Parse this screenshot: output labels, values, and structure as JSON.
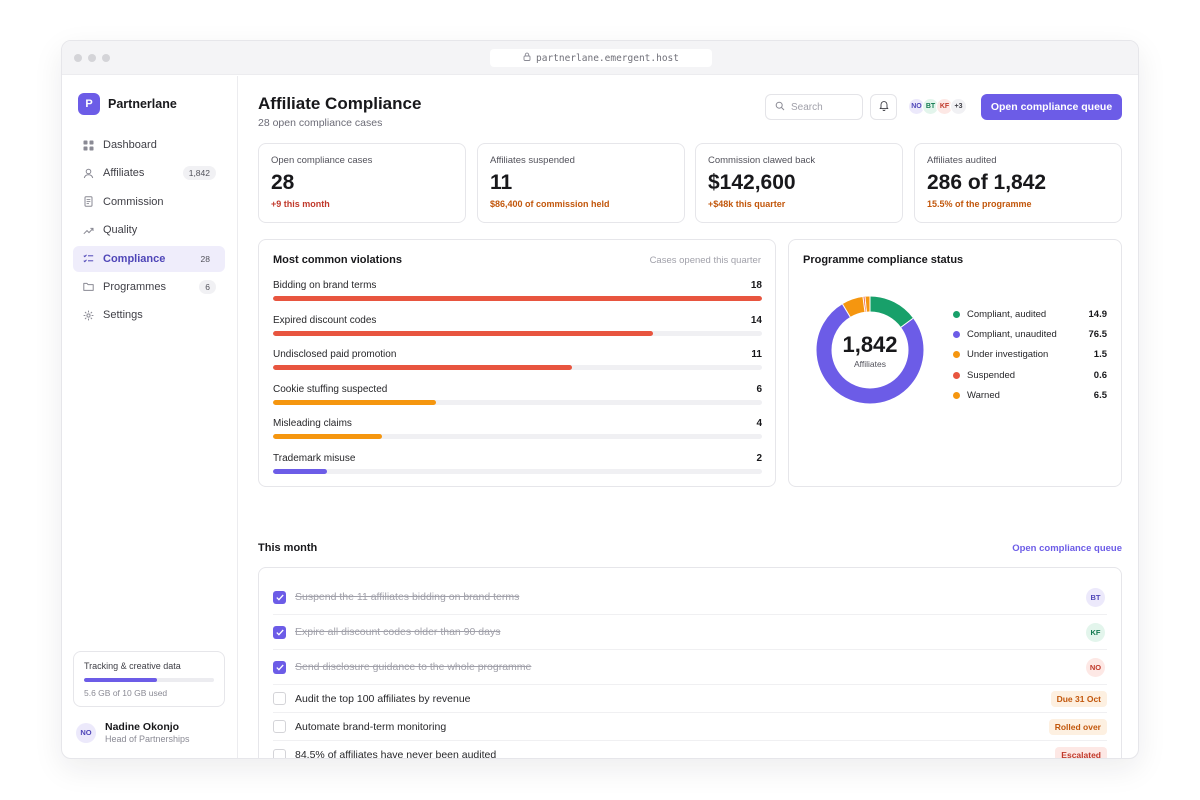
{
  "browser": {
    "url": "partnerlane.emergent.host"
  },
  "app": {
    "logo_letter": "P",
    "name": "Partnerlane"
  },
  "sidebar": {
    "items": [
      {
        "label": "Dashboard",
        "icon": "grid-icon",
        "badge": ""
      },
      {
        "label": "Affiliates",
        "icon": "user-icon",
        "badge": "1,842"
      },
      {
        "label": "Commission",
        "icon": "document-icon",
        "badge": ""
      },
      {
        "label": "Quality",
        "icon": "trend-icon",
        "badge": ""
      },
      {
        "label": "Compliance",
        "icon": "checklist-icon",
        "badge": "28"
      },
      {
        "label": "Programmes",
        "icon": "folder-icon",
        "badge": "6"
      },
      {
        "label": "Settings",
        "icon": "gear-icon",
        "badge": ""
      }
    ],
    "storage": {
      "title": "Tracking & creative data",
      "used_text": "5.6 GB of 10 GB used",
      "used_fraction": 0.56
    },
    "user": {
      "initials": "NO",
      "name": "Nadine Okonjo",
      "role": "Head of Partnerships"
    }
  },
  "header": {
    "title": "Affiliate Compliance",
    "subtitle": "28 open compliance cases",
    "search_placeholder": "Search",
    "avatars": [
      "NO",
      "BT",
      "KF"
    ],
    "avatars_more": "+3",
    "primary_button": "Open compliance queue"
  },
  "stats": [
    {
      "label": "Open compliance cases",
      "value": "28",
      "delta": "+9 this month",
      "color": "#c0392b"
    },
    {
      "label": "Affiliates suspended",
      "value": "11",
      "delta": "$86,400 of commission held",
      "color": "#c2570c"
    },
    {
      "label": "Commission clawed back",
      "value": "$142,600",
      "delta": "+$48k this quarter",
      "color": "#c2570c"
    },
    {
      "label": "Affiliates audited",
      "value": "286 of 1,842",
      "delta": "15.5% of the programme",
      "color": "#c2570c"
    }
  ],
  "violations": {
    "title": "Most common violations",
    "meta": "Cases opened this quarter",
    "max": 18,
    "rows": [
      {
        "label": "Bidding on brand terms",
        "count": 18,
        "color": "#e8553f"
      },
      {
        "label": "Expired discount codes",
        "count": 14,
        "color": "#e8553f"
      },
      {
        "label": "Undisclosed paid promotion",
        "count": 11,
        "color": "#e8553f"
      },
      {
        "label": "Cookie stuffing suspected",
        "count": 6,
        "color": "#f5960f"
      },
      {
        "label": "Misleading claims",
        "count": 4,
        "color": "#f5960f"
      },
      {
        "label": "Trademark misuse",
        "count": 2,
        "color": "#6c5ce7"
      }
    ]
  },
  "status": {
    "title": "Programme compliance status",
    "total": "1,842",
    "total_label": "Affiliates",
    "segments": [
      {
        "label": "Compliant, audited",
        "value": 14.9,
        "display": "14.9",
        "color": "#18a06a"
      },
      {
        "label": "Compliant, unaudited",
        "value": 76.5,
        "display": "76.5",
        "color": "#6c5ce7"
      },
      {
        "label": "Under investigation",
        "value": 1.5,
        "display": "1.5",
        "color": "#f5960f"
      },
      {
        "label": "Suspended",
        "value": 0.6,
        "display": "0.6",
        "color": "#e8553f"
      },
      {
        "label": "Warned",
        "value": 6.5,
        "display": "6.5",
        "color": "#f5960f"
      }
    ]
  },
  "tasks": {
    "title": "This month",
    "link": "Open compliance queue",
    "items": [
      {
        "text": "Suspend the 11 affiliates bidding on brand terms",
        "done": true,
        "avatar": "BT",
        "avatar_bg": "#ece9fb",
        "avatar_color": "#4f46b8"
      },
      {
        "text": "Expire all discount codes older than 90 days",
        "done": true,
        "avatar": "KF",
        "avatar_bg": "#e3f5ec",
        "avatar_color": "#137a50"
      },
      {
        "text": "Send disclosure guidance to the whole programme",
        "done": true,
        "avatar": "NO",
        "avatar_bg": "#fde8e5",
        "avatar_color": "#c0392b"
      },
      {
        "text": "Audit the top 100 affiliates by revenue",
        "done": false,
        "tag": "Due 31 Oct",
        "tag_bg": "#fdf0e1",
        "tag_color": "#c2570c"
      },
      {
        "text": "Automate brand-term monitoring",
        "done": false,
        "tag": "Rolled over",
        "tag_bg": "#fdf0e1",
        "tag_color": "#c2570c"
      },
      {
        "text": "84.5% of affiliates have never been audited",
        "done": false,
        "tag": "Escalated",
        "tag_bg": "#fde8e5",
        "tag_color": "#c0392b"
      }
    ]
  }
}
